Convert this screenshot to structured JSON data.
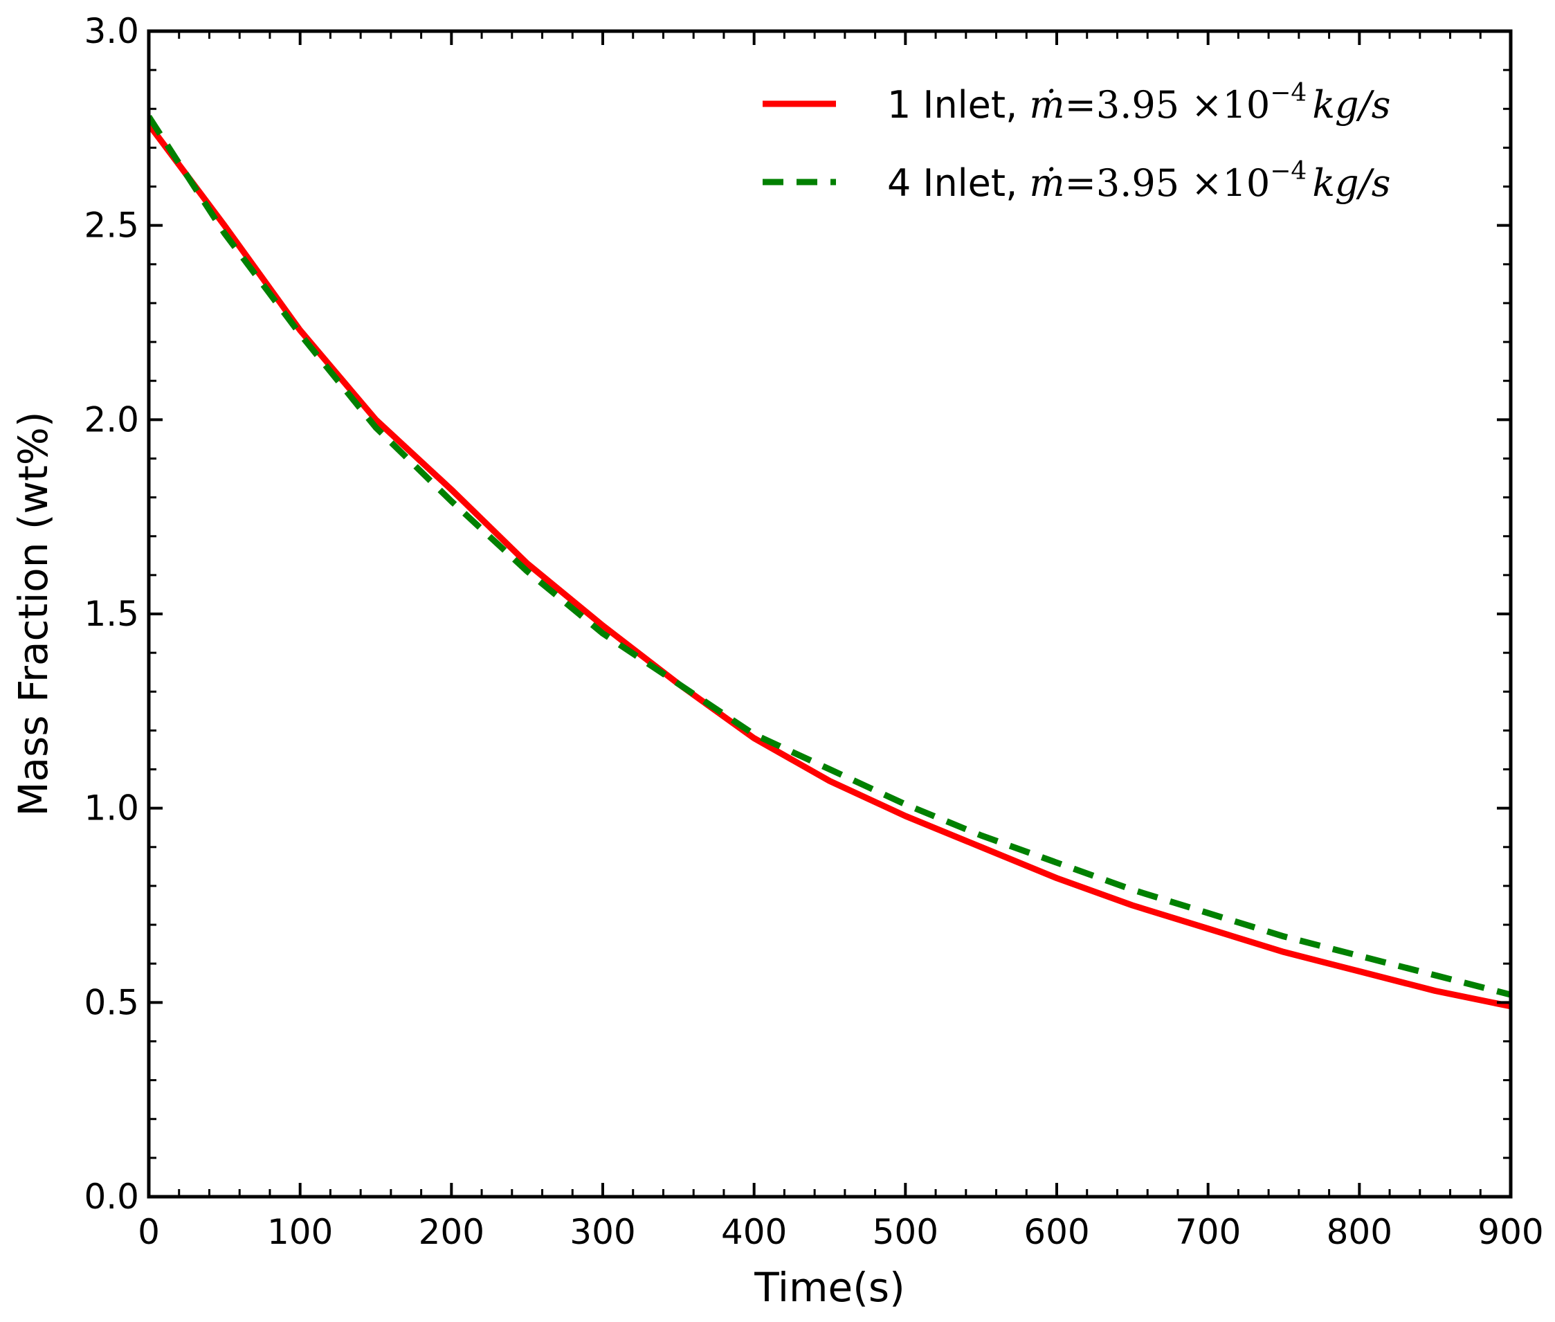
{
  "chart_data": {
    "type": "line",
    "title": "",
    "xlabel": "Time(s)",
    "ylabel": "Mass Fraction (wt%)",
    "xlim": [
      0,
      900
    ],
    "ylim": [
      0.0,
      3.0
    ],
    "xticks": [
      "0",
      "100",
      "200",
      "300",
      "400",
      "500",
      "600",
      "700",
      "800",
      "900"
    ],
    "yticks": [
      "0.0",
      "0.5",
      "1.0",
      "1.5",
      "2.0",
      "2.5",
      "3.0"
    ],
    "grid": false,
    "legend_position": "top-right",
    "series": [
      {
        "name": "1 Inlet, ",
        "name_math": {
          "base": "3.95",
          "exp": "−4",
          "unit": "kg/s"
        },
        "color": "#ff0000",
        "style": "solid",
        "x": [
          0,
          50,
          100,
          150,
          200,
          250,
          300,
          350,
          400,
          450,
          500,
          550,
          600,
          650,
          700,
          750,
          800,
          850,
          900
        ],
        "y": [
          2.76,
          2.5,
          2.23,
          2.0,
          1.82,
          1.63,
          1.47,
          1.32,
          1.18,
          1.07,
          0.98,
          0.9,
          0.82,
          0.75,
          0.69,
          0.63,
          0.58,
          0.53,
          0.49
        ]
      },
      {
        "name": "4 Inlet, ",
        "name_math": {
          "base": "3.95",
          "exp": "−4",
          "unit": "kg/s"
        },
        "color": "#008000",
        "style": "dashed",
        "x": [
          0,
          50,
          100,
          150,
          200,
          250,
          300,
          350,
          400,
          450,
          500,
          550,
          600,
          650,
          700,
          750,
          800,
          850,
          900
        ],
        "y": [
          2.78,
          2.48,
          2.22,
          1.98,
          1.79,
          1.61,
          1.45,
          1.32,
          1.19,
          1.1,
          1.01,
          0.93,
          0.86,
          0.79,
          0.73,
          0.67,
          0.62,
          0.57,
          0.52
        ]
      }
    ]
  }
}
